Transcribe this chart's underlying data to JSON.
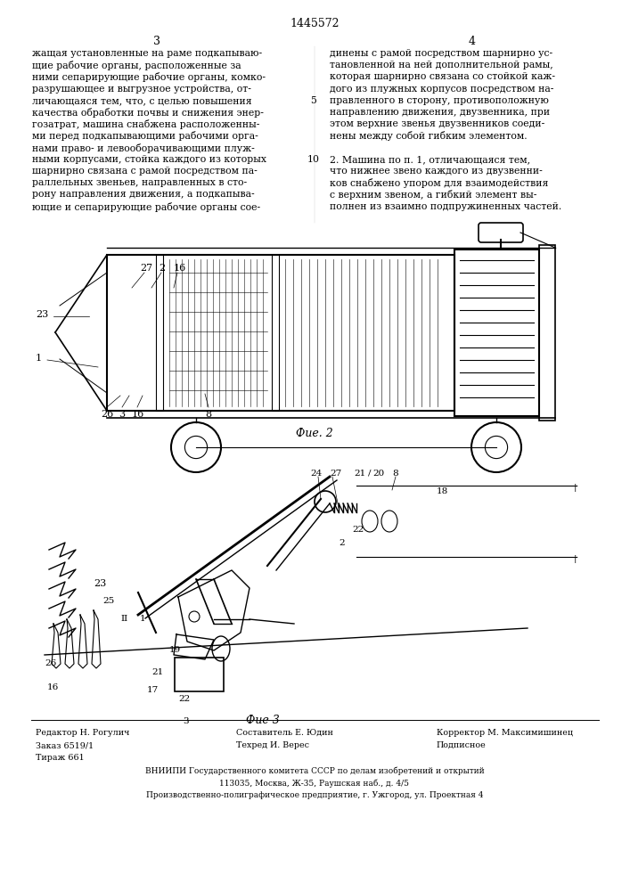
{
  "patent_number": "1445572",
  "page_left": "3",
  "page_right": "4",
  "col_left_text": [
    "жащая установленные на раме подкапываю-",
    "щие рабочие органы, расположенные за",
    "ними сепарирующие рабочие органы, комко-",
    "разрушающее и выгрузное устройства, от-",
    "личающаяся тем, что, с целью повышения",
    "качества обработки почвы и снижения энер-",
    "гозатрат, машина снабжена расположенны-",
    "ми перед подкапывающими рабочими орга-",
    "нами право- и левооборачивающими плуж-",
    "ными корпусами, стойка каждого из которых",
    "шарнирно связана с рамой посредством па-",
    "раллельных звеньев, направленных в сто-",
    "рону направления движения, а подкапыва-",
    "ющие и сепарирующие рабочие органы сое-"
  ],
  "col_right_text": [
    "динены с рамой посредством шарнирно ус-",
    "тановленной на ней дополнительной рамы,",
    "которая шарнирно связана со стойкой каж-",
    "дого из плужных корпусов посредством на-",
    "правленного в сторону, противоположную",
    "направлению движения, двузвенника, при",
    "этом верхние звенья двузвенников соеди-",
    "нены между собой гибким элементом.",
    "",
    "2. Машина по п. 1, отличающаяся тем,",
    "что нижнее звено каждого из двузвенни-",
    "ков снабжено упором для взаимодействия",
    "с верхним звеном, а гибкий элемент вы-",
    "полнен из взаимно подпружиненных частей."
  ],
  "line_number_5": "5",
  "line_number_10": "10",
  "fig2_label": "Фие. 2",
  "fig3_label": "Фие 3",
  "footer_left_editor": "Редактор Н. Рогулич",
  "footer_left_order": "Заказ 6519/1",
  "footer_left_tirazh": "Тираж 661",
  "footer_center_sostavitel": "Составитель Е. Юдин",
  "footer_center_tekhred": "Техред И. Верес",
  "footer_right_korrektor": "Корректор М. Максимишинец",
  "footer_right_podpisnoe": "Подписное",
  "footer_vniiipi": "ВНИИПИ Государственного комитета СССР по делам изобретений и открытий",
  "footer_address": "113035, Москва, Ж-35, Раушская наб., д. 4/5",
  "footer_production": "Производственно-полиграфическое предприятие, г. Ужгород, ул. Проектная 4",
  "bg_color": "#ffffff",
  "text_color": "#000000"
}
